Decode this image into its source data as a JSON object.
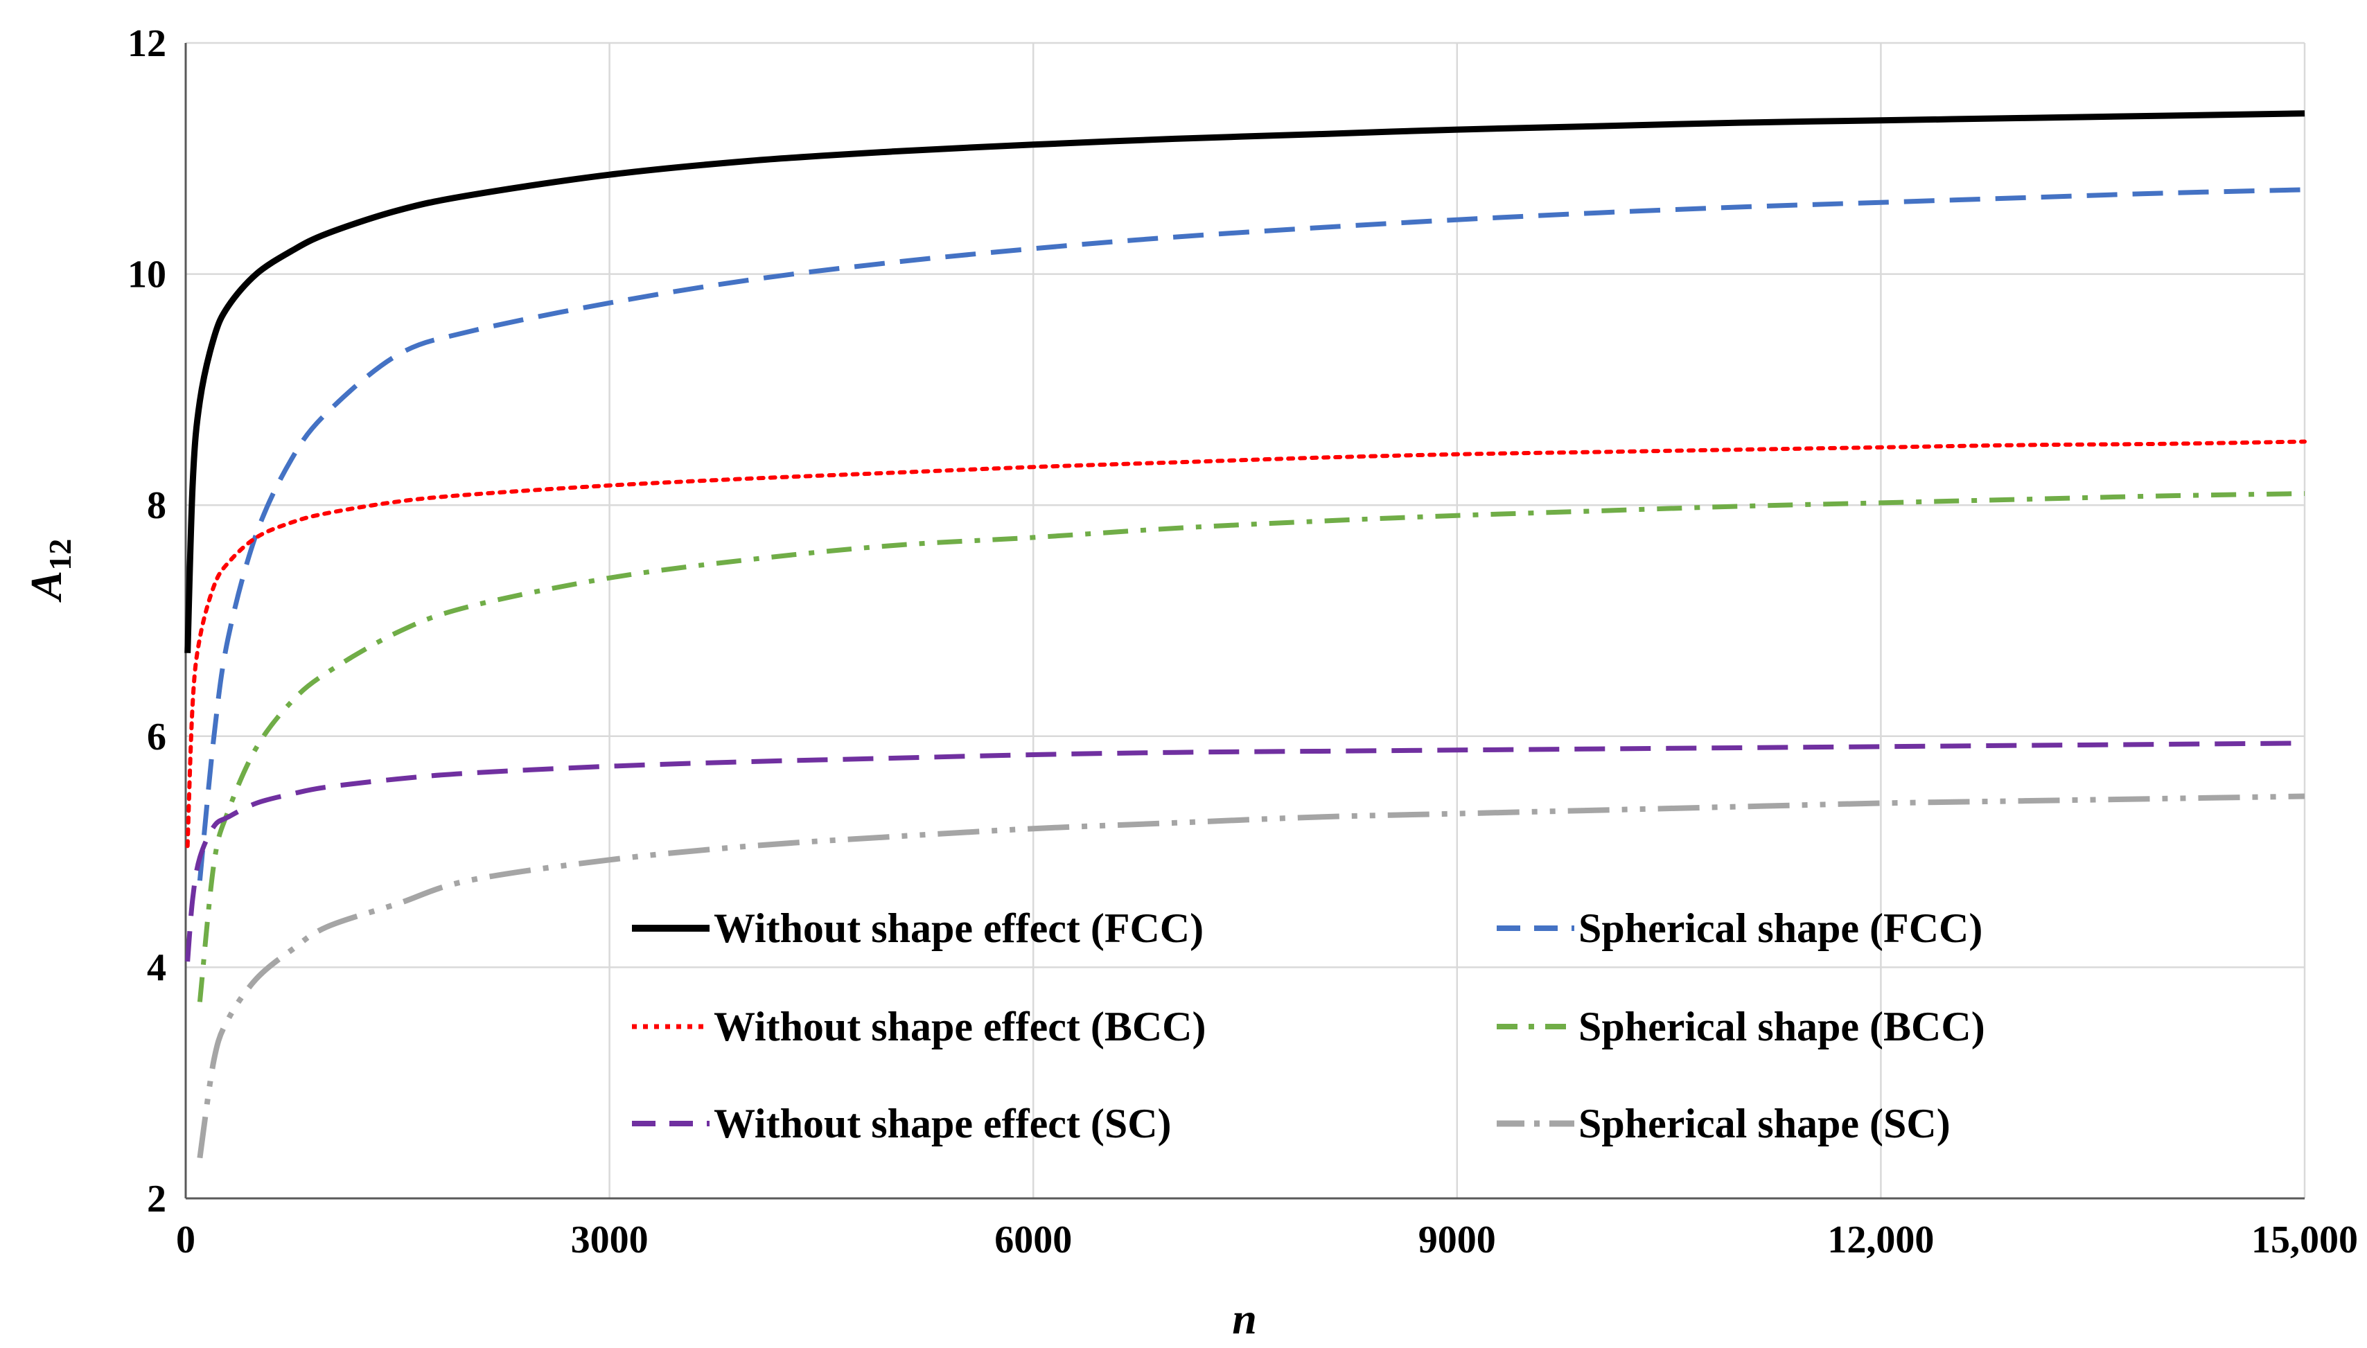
{
  "chart_data": {
    "type": "line",
    "title": "",
    "xlabel": "n",
    "ylabel_main": "A",
    "ylabel_sub": "12",
    "xlim": [
      0,
      15000
    ],
    "ylim": [
      2,
      12
    ],
    "grid": true,
    "legend_position": "bottom-center inside plot",
    "x_ticks": [
      0,
      3000,
      6000,
      9000,
      12000,
      15000
    ],
    "x_tick_labels": [
      "0",
      "3000",
      "6000",
      "9000",
      "12,000",
      "15,000"
    ],
    "y_ticks": [
      2,
      4,
      6,
      8,
      10,
      12
    ],
    "y_tick_labels": [
      "2",
      "4",
      "6",
      "8",
      "10",
      "12"
    ],
    "x": [
      13,
      50,
      100,
      200,
      300,
      500,
      750,
      1000,
      1500,
      2000,
      3000,
      4000,
      5000,
      6000,
      7000,
      8000,
      9000,
      10000,
      11000,
      12000,
      13000,
      14000,
      15000
    ],
    "series": [
      {
        "name": "Without shape effect (FCC)",
        "color": "#000000",
        "dash": "solid",
        "x_start": 13,
        "values": [
          6.72,
          8.2,
          8.9,
          9.45,
          9.72,
          10.0,
          10.2,
          10.35,
          10.55,
          10.68,
          10.86,
          10.98,
          11.06,
          11.12,
          11.17,
          11.21,
          11.25,
          11.28,
          11.31,
          11.33,
          11.35,
          11.37,
          11.39
        ]
      },
      {
        "name": "Spherical shape (FCC)",
        "color": "#4472c4",
        "dash": "long-dash",
        "x_start": 100,
        "values": [
          null,
          null,
          4.75,
          6.0,
          6.85,
          7.75,
          8.4,
          8.8,
          9.3,
          9.5,
          9.75,
          9.95,
          10.1,
          10.22,
          10.32,
          10.4,
          10.47,
          10.53,
          10.58,
          10.62,
          10.66,
          10.7,
          10.73
        ]
      },
      {
        "name": "Without shape effect (BCC)",
        "color": "#ff0000",
        "dash": "dotted",
        "x_start": 13,
        "values": [
          5.05,
          6.3,
          6.85,
          7.3,
          7.5,
          7.72,
          7.85,
          7.93,
          8.03,
          8.09,
          8.17,
          8.23,
          8.28,
          8.33,
          8.37,
          8.41,
          8.44,
          8.46,
          8.48,
          8.5,
          8.52,
          8.53,
          8.55
        ]
      },
      {
        "name": "Spherical shape  (BCC)",
        "color": "#70ad47",
        "dash": "dash-dot",
        "x_start": 100,
        "values": [
          null,
          null,
          3.7,
          4.9,
          5.35,
          5.9,
          6.3,
          6.55,
          6.9,
          7.12,
          7.37,
          7.53,
          7.65,
          7.72,
          7.8,
          7.86,
          7.91,
          7.95,
          7.99,
          8.02,
          8.05,
          8.08,
          8.1
        ]
      },
      {
        "name": "Without shape effect (SC)",
        "color": "#7030a0",
        "dash": "long-dash",
        "x_start": 13,
        "values": [
          4.05,
          4.6,
          4.95,
          5.22,
          5.3,
          5.42,
          5.5,
          5.56,
          5.63,
          5.68,
          5.74,
          5.78,
          5.81,
          5.84,
          5.86,
          5.87,
          5.88,
          5.89,
          5.9,
          5.91,
          5.92,
          5.93,
          5.94
        ]
      },
      {
        "name": "Spherical shape (SC)",
        "color": "#a5a5a5",
        "dash": "long-dash-dot-dot",
        "x_start": 100,
        "values": [
          null,
          null,
          2.35,
          3.2,
          3.55,
          3.9,
          4.15,
          4.35,
          4.55,
          4.75,
          4.93,
          5.05,
          5.13,
          5.2,
          5.25,
          5.3,
          5.33,
          5.36,
          5.39,
          5.42,
          5.44,
          5.46,
          5.48
        ]
      }
    ]
  }
}
